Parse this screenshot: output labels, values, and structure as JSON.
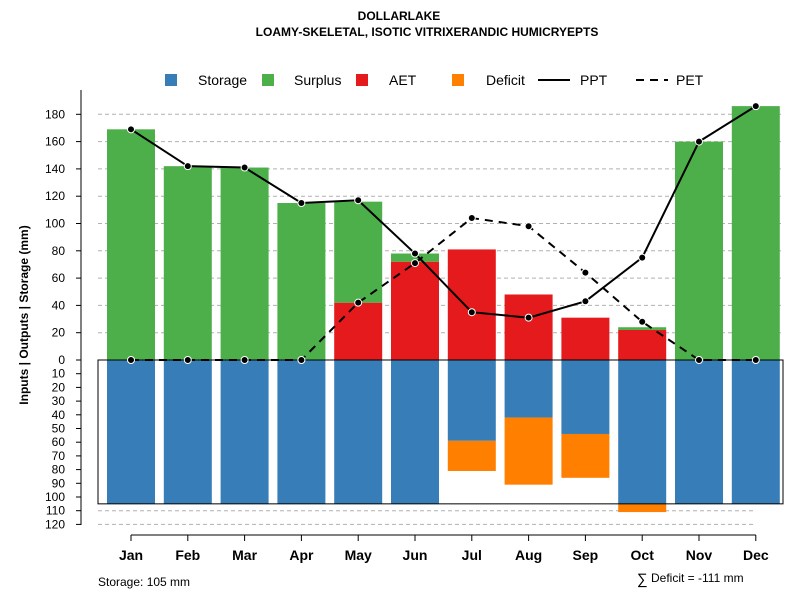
{
  "chart_data": {
    "type": "bar",
    "title": "DOLLARLAKE",
    "subtitle": "LOAMY-SKELETAL, ISOTIC VITRIXERANDIC HUMICRYEPTS",
    "ylabel": "Inputs | Outputs | Storage    (mm)",
    "categories": [
      "Jan",
      "Feb",
      "Mar",
      "Apr",
      "May",
      "Jun",
      "Jul",
      "Aug",
      "Sep",
      "Oct",
      "Nov",
      "Dec"
    ],
    "ylim_top": [
      0,
      190
    ],
    "ylim_bottom": [
      0,
      120
    ],
    "ticks_top": [
      0,
      20,
      40,
      60,
      80,
      100,
      120,
      140,
      160,
      180
    ],
    "ticks_bottom": [
      10,
      20,
      30,
      40,
      50,
      60,
      70,
      80,
      90,
      100,
      110,
      120
    ],
    "series": [
      {
        "name": "Storage",
        "color": "#377EB8",
        "values": [
          105,
          105,
          105,
          105,
          105,
          105,
          59,
          42,
          54,
          105,
          105,
          105
        ]
      },
      {
        "name": "Surplus",
        "color": "#4DAF4A",
        "values": [
          169,
          142,
          141,
          115,
          74,
          6,
          0,
          0,
          0,
          2,
          160,
          186
        ]
      },
      {
        "name": "AET",
        "color": "#E41A1C",
        "values": [
          0,
          0,
          0,
          0,
          42,
          72,
          81,
          48,
          31,
          22,
          0,
          0
        ]
      },
      {
        "name": "Deficit",
        "color": "#FF7F00",
        "values": [
          0,
          0,
          0,
          0,
          0,
          0,
          22,
          49,
          32,
          6,
          0,
          0
        ]
      },
      {
        "name": "PPT",
        "color": "#000000",
        "line": "solid",
        "values": [
          169,
          142,
          141,
          115,
          117,
          78,
          35,
          31,
          43,
          75,
          160,
          186
        ]
      },
      {
        "name": "PET",
        "color": "#000000",
        "line": "dashed",
        "values": [
          0,
          0,
          0,
          0,
          42,
          71,
          104,
          98,
          64,
          28,
          0,
          0
        ]
      }
    ],
    "storage_capacity": 105,
    "grid": true,
    "legend_position": "top"
  },
  "notes": {
    "storage": "Storage: 105 mm",
    "deficit_symbol": "∑",
    "deficit": "Deficit = -111 mm"
  }
}
